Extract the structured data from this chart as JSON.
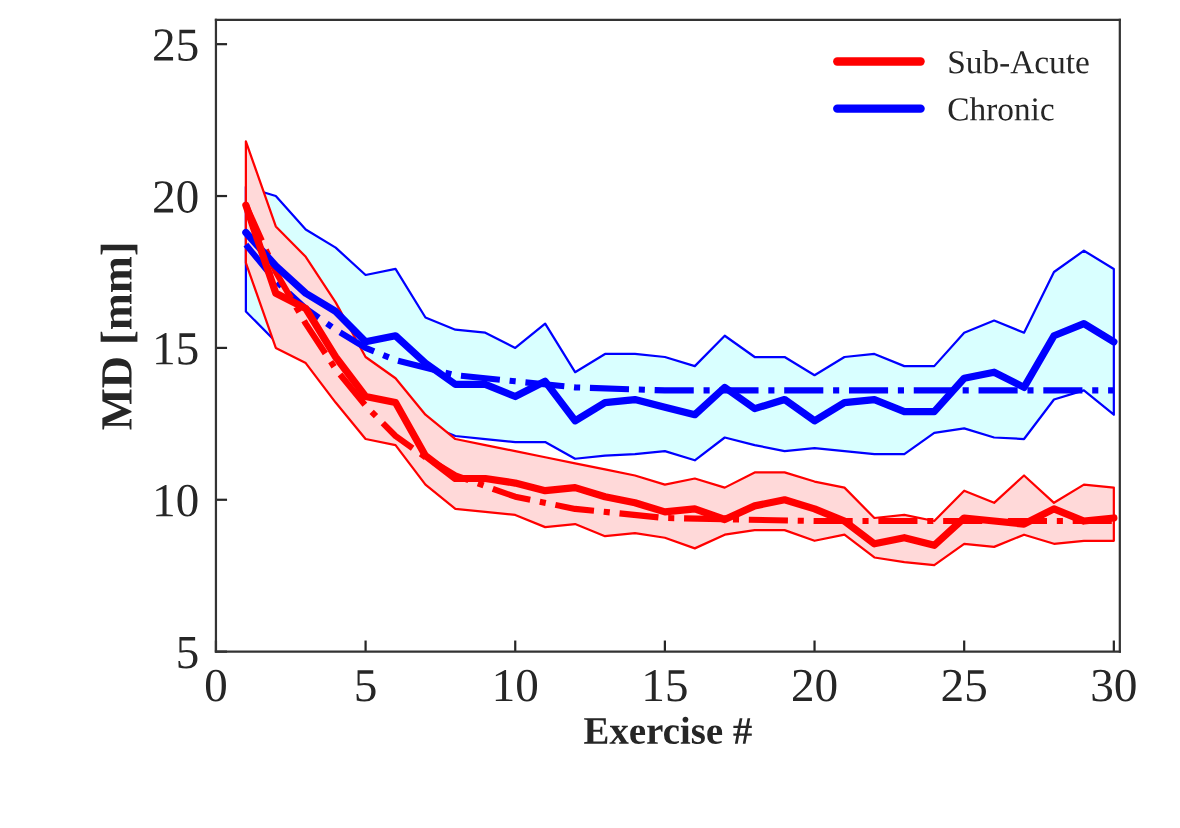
{
  "chart_data": {
    "type": "line",
    "xlabel": "Exercise #",
    "ylabel": "MD [mm]",
    "x": [
      1,
      2,
      3,
      4,
      5,
      6,
      7,
      8,
      9,
      10,
      11,
      12,
      13,
      14,
      15,
      16,
      17,
      18,
      19,
      20,
      21,
      22,
      23,
      24,
      25,
      26,
      27,
      28,
      29,
      30
    ],
    "xlim": [
      0,
      30.2
    ],
    "xticks": [
      0,
      5,
      10,
      15,
      20,
      25,
      30
    ],
    "ylim": [
      5,
      25.8
    ],
    "yticks": [
      5,
      10,
      15,
      20,
      25
    ],
    "grid": false,
    "legend": "top right",
    "marker": "none",
    "series": [
      {
        "name": "Sub-Acute",
        "color": "#ff0000",
        "line_style": "solid",
        "values": [
          19.7,
          16.8,
          16.3,
          14.7,
          13.4,
          13.2,
          11.45,
          10.7,
          10.7,
          10.55,
          10.3,
          10.4,
          10.1,
          9.9,
          9.6,
          9.7,
          9.35,
          9.8,
          10.0,
          9.7,
          9.3,
          8.55,
          8.75,
          8.5,
          9.4,
          9.3,
          9.2,
          9.7,
          9.3,
          9.4
        ],
        "upper": [
          21.8,
          19.0,
          18.0,
          16.5,
          14.7,
          14.0,
          12.8,
          12.0,
          11.8,
          11.6,
          11.4,
          11.2,
          11.0,
          10.8,
          10.5,
          10.7,
          10.4,
          10.9,
          10.9,
          10.6,
          10.4,
          9.4,
          9.5,
          9.3,
          10.3,
          9.9,
          10.8,
          9.9,
          10.5,
          10.4
        ],
        "lower": [
          17.8,
          15.0,
          14.5,
          13.2,
          12.0,
          11.8,
          10.5,
          9.7,
          9.6,
          9.5,
          9.1,
          9.2,
          8.8,
          8.9,
          8.75,
          8.4,
          8.85,
          9.0,
          9.0,
          8.65,
          8.85,
          8.1,
          7.95,
          7.85,
          8.55,
          8.45,
          8.85,
          8.55,
          8.65,
          8.65
        ]
      },
      {
        "name": "Chronic",
        "color": "#0000ff",
        "line_style": "solid",
        "values": [
          18.8,
          17.7,
          16.8,
          16.2,
          15.2,
          15.4,
          14.5,
          13.8,
          13.8,
          13.4,
          13.9,
          12.6,
          13.2,
          13.3,
          13.05,
          12.8,
          13.7,
          13.0,
          13.3,
          12.6,
          13.2,
          13.3,
          12.9,
          12.9,
          14.0,
          14.2,
          13.7,
          15.4,
          15.8,
          15.2
        ],
        "upper": [
          20.3,
          20.0,
          18.9,
          18.3,
          17.4,
          17.6,
          16.0,
          15.6,
          15.5,
          15.0,
          15.8,
          14.2,
          14.8,
          14.8,
          14.7,
          14.4,
          15.4,
          14.7,
          14.7,
          14.1,
          14.7,
          14.8,
          14.4,
          14.4,
          15.5,
          15.9,
          15.5,
          17.5,
          18.2,
          17.6
        ],
        "lower": [
          16.2,
          15.2,
          14.6,
          14.2,
          13.3,
          13.2,
          12.5,
          12.1,
          12.0,
          11.9,
          11.9,
          11.35,
          11.45,
          11.5,
          11.6,
          11.3,
          12.05,
          11.8,
          11.6,
          11.7,
          11.6,
          11.5,
          11.5,
          12.2,
          12.35,
          12.05,
          12.0,
          13.3,
          13.6,
          12.8
        ]
      },
      {
        "color": "#ff0000",
        "line_style": "dashdot",
        "x": [
          1,
          2,
          3,
          4,
          5,
          6,
          7,
          8,
          10,
          12,
          15,
          20,
          30
        ],
        "values": [
          19.7,
          17.5,
          15.8,
          14.3,
          13.1,
          12.1,
          11.4,
          10.8,
          10.1,
          9.7,
          9.4,
          9.3,
          9.3
        ]
      },
      {
        "color": "#0000ff",
        "line_style": "dashdot",
        "x": [
          1,
          2,
          3,
          4,
          5,
          6,
          8,
          10,
          12,
          15,
          20,
          30
        ],
        "values": [
          18.4,
          17.2,
          16.3,
          15.6,
          15.0,
          14.6,
          14.1,
          13.9,
          13.7,
          13.6,
          13.6,
          13.6
        ]
      }
    ]
  }
}
